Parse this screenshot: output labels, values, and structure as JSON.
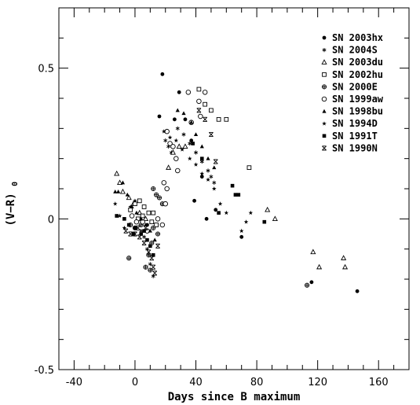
{
  "chart_data": {
    "type": "scatter",
    "title": "",
    "xlabel": "Days since B maximum",
    "ylabel": "(V−R)",
    "ylabel_subscript": "0",
    "xlim": [
      -50,
      180
    ],
    "ylim": [
      -0.5,
      0.7
    ],
    "xticks": [
      -40,
      0,
      40,
      80,
      120,
      160
    ],
    "xtick_labels": [
      "-40",
      "0",
      "40",
      "80",
      "120",
      "160"
    ],
    "yticks": [
      -0.5,
      0,
      0.5
    ],
    "ytick_labels": [
      "-0.5",
      "0",
      "0.5"
    ],
    "legend_position": "top-right",
    "grid": false,
    "series": [
      {
        "name": "SN 2003hx",
        "marker": "filled-circle",
        "color": "#000000",
        "points": [
          [
            16,
            0.34
          ],
          [
            18,
            0.48
          ],
          [
            26,
            0.33
          ],
          [
            29,
            0.42
          ],
          [
            33,
            0.33
          ],
          [
            37,
            0.26
          ],
          [
            39,
            0.06
          ],
          [
            44,
            0.14
          ],
          [
            47,
            0.0
          ],
          [
            53,
            0.03
          ],
          [
            70,
            -0.06
          ],
          [
            116,
            -0.21
          ],
          [
            146,
            -0.24
          ],
          [
            6,
            0.04
          ],
          [
            8,
            -0.02
          ]
        ]
      },
      {
        "name": "SN 2004S",
        "marker": "asterisk",
        "color": "#000000",
        "points": [
          [
            20,
            0.26
          ],
          [
            22,
            0.24
          ],
          [
            24,
            0.22
          ],
          [
            28,
            0.3
          ],
          [
            32,
            0.28
          ],
          [
            36,
            0.25
          ],
          [
            40,
            0.22
          ],
          [
            44,
            0.19
          ],
          [
            48,
            0.16
          ],
          [
            50,
            0.14
          ],
          [
            52,
            0.12
          ],
          [
            4,
            -0.04
          ],
          [
            6,
            -0.06
          ],
          [
            8,
            -0.1
          ],
          [
            10,
            -0.15
          ],
          [
            12,
            -0.19
          ]
        ]
      },
      {
        "name": "SN 2003du",
        "marker": "open-triangle",
        "color": "#000000",
        "points": [
          [
            -12,
            0.15
          ],
          [
            -10,
            0.12
          ],
          [
            -8,
            0.09
          ],
          [
            -4,
            0.07
          ],
          [
            -1,
            0.05
          ],
          [
            3,
            0.02
          ],
          [
            7,
            0.0
          ],
          [
            25,
            0.22
          ],
          [
            29,
            0.24
          ],
          [
            33,
            0.24
          ],
          [
            87,
            0.03
          ],
          [
            92,
            0.0
          ],
          [
            117,
            -0.11
          ],
          [
            121,
            -0.16
          ],
          [
            137,
            -0.13
          ],
          [
            138,
            -0.16
          ],
          [
            22,
            0.17
          ]
        ]
      },
      {
        "name": "SN 2002hu",
        "marker": "open-square",
        "color": "#000000",
        "points": [
          [
            -3,
            0.03
          ],
          [
            0,
            0.05
          ],
          [
            3,
            0.06
          ],
          [
            6,
            0.04
          ],
          [
            9,
            0.02
          ],
          [
            12,
            0.02
          ],
          [
            42,
            0.43
          ],
          [
            46,
            0.38
          ],
          [
            50,
            0.36
          ],
          [
            55,
            0.33
          ],
          [
            60,
            0.33
          ],
          [
            75,
            0.17
          ],
          [
            2,
            0.0
          ],
          [
            5,
            0.01
          ],
          [
            11,
            -0.01
          ],
          [
            14,
            -0.02
          ]
        ]
      },
      {
        "name": "SN 2000E",
        "marker": "open-circle-dot",
        "color": "#000000",
        "points": [
          [
            -3,
            -0.02
          ],
          [
            0,
            -0.03
          ],
          [
            4,
            -0.02
          ],
          [
            12,
            -0.03
          ],
          [
            15,
            -0.05
          ],
          [
            -4,
            -0.13
          ],
          [
            7,
            -0.16
          ],
          [
            10,
            -0.17
          ],
          [
            12,
            0.1
          ],
          [
            14,
            0.08
          ],
          [
            16,
            0.07
          ],
          [
            18,
            0.05
          ],
          [
            113,
            -0.22
          ],
          [
            9,
            -0.12
          ],
          [
            11,
            -0.08
          ]
        ]
      },
      {
        "name": "SN 1999aw",
        "marker": "open-circle",
        "color": "#000000",
        "points": [
          [
            21,
            0.29
          ],
          [
            23,
            0.25
          ],
          [
            25,
            0.24
          ],
          [
            27,
            0.2
          ],
          [
            28,
            0.16
          ],
          [
            35,
            0.42
          ],
          [
            42,
            0.39
          ],
          [
            46,
            0.42
          ],
          [
            19,
            0.12
          ],
          [
            21,
            0.1
          ],
          [
            37,
            0.32
          ],
          [
            43,
            0.34
          ],
          [
            -2,
            0.01
          ],
          [
            1,
            -0.01
          ],
          [
            5,
            -0.01
          ],
          [
            8,
            -0.04
          ],
          [
            15,
            0.0
          ],
          [
            18,
            -0.02
          ],
          [
            20,
            0.05
          ]
        ]
      },
      {
        "name": "SN 1998bu",
        "marker": "filled-triangle",
        "color": "#000000",
        "points": [
          [
            -13,
            0.09
          ],
          [
            -11,
            0.09
          ],
          [
            -8,
            0.12
          ],
          [
            -5,
            0.08
          ],
          [
            -2,
            0.04
          ],
          [
            1,
            0.02
          ],
          [
            4,
            0.0
          ],
          [
            7,
            -0.02
          ],
          [
            10,
            -0.04
          ],
          [
            13,
            -0.07
          ],
          [
            28,
            0.36
          ],
          [
            32,
            0.35
          ],
          [
            37,
            0.32
          ],
          [
            40,
            0.28
          ],
          [
            44,
            0.24
          ],
          [
            48,
            0.2
          ],
          [
            52,
            0.17
          ]
        ]
      },
      {
        "name": "SN 1994D",
        "marker": "star",
        "color": "#000000",
        "points": [
          [
            -13,
            0.05
          ],
          [
            -10,
            0.01
          ],
          [
            -7,
            -0.03
          ],
          [
            -3,
            0.04
          ],
          [
            0,
            0.06
          ],
          [
            19,
            0.29
          ],
          [
            23,
            0.27
          ],
          [
            27,
            0.26
          ],
          [
            31,
            0.23
          ],
          [
            36,
            0.2
          ],
          [
            40,
            0.18
          ],
          [
            44,
            0.15
          ],
          [
            48,
            0.13
          ],
          [
            52,
            0.1
          ],
          [
            56,
            0.05
          ],
          [
            60,
            0.02
          ],
          [
            70,
            -0.04
          ],
          [
            73,
            -0.01
          ],
          [
            76,
            0.02
          ]
        ]
      },
      {
        "name": "SN 1991T",
        "marker": "filled-square",
        "color": "#000000",
        "points": [
          [
            -12,
            0.01
          ],
          [
            -7,
            0.0
          ],
          [
            -4,
            -0.02
          ],
          [
            0,
            -0.03
          ],
          [
            4,
            -0.05
          ],
          [
            8,
            -0.07
          ],
          [
            10,
            -0.09
          ],
          [
            12,
            -0.12
          ],
          [
            55,
            0.02
          ],
          [
            64,
            0.11
          ],
          [
            66,
            0.08
          ],
          [
            68,
            0.08
          ],
          [
            85,
            -0.01
          ],
          [
            38,
            0.25
          ],
          [
            44,
            0.2
          ],
          [
            -1,
            -0.05
          ],
          [
            6,
            -0.04
          ]
        ]
      },
      {
        "name": "SN 1990N",
        "marker": "cross-box",
        "color": "#000000",
        "points": [
          [
            -6,
            -0.04
          ],
          [
            -3,
            -0.05
          ],
          [
            0,
            -0.05
          ],
          [
            3,
            -0.06
          ],
          [
            6,
            -0.08
          ],
          [
            9,
            -0.11
          ],
          [
            11,
            -0.13
          ],
          [
            12,
            -0.16
          ],
          [
            13,
            -0.18
          ],
          [
            15,
            -0.09
          ],
          [
            42,
            0.36
          ],
          [
            46,
            0.33
          ],
          [
            50,
            0.28
          ],
          [
            53,
            0.19
          ],
          [
            2,
            -0.03
          ],
          [
            7,
            -0.03
          ]
        ]
      }
    ]
  }
}
